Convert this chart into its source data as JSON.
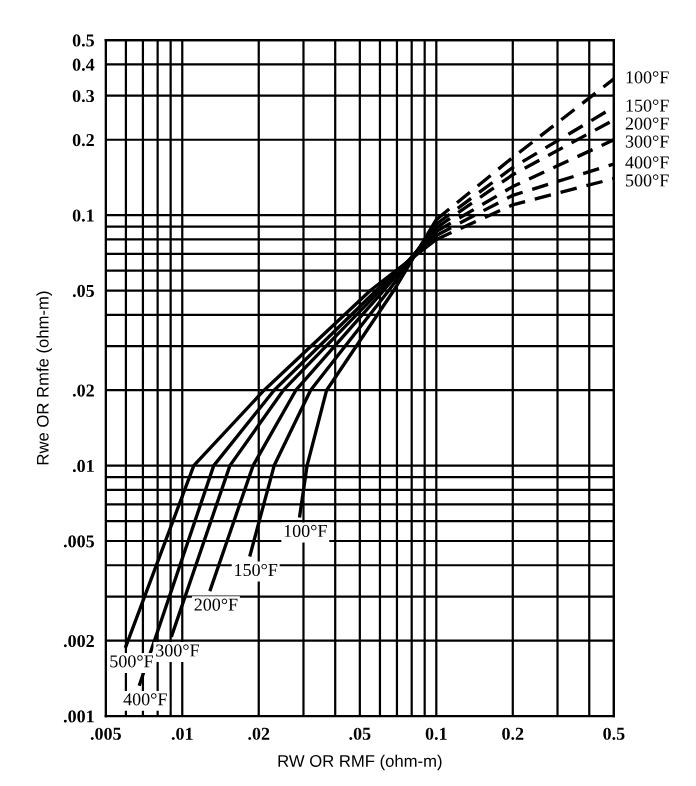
{
  "chart_data": {
    "type": "line",
    "xlabel": "RW OR RMF (ohm-m)",
    "ylabel": "Rwe OR Rmfe (ohm-m)",
    "log": "xy",
    "grid": true,
    "legend": false,
    "marker": "none",
    "xlim": [
      0.005,
      0.5
    ],
    "ylim": [
      0.001,
      0.5
    ],
    "xticks": [
      {
        "value": 0.005,
        "label": ".005"
      },
      {
        "value": 0.006,
        "label": null
      },
      {
        "value": 0.007,
        "label": null
      },
      {
        "value": 0.008,
        "label": null
      },
      {
        "value": 0.009,
        "label": null
      },
      {
        "value": 0.01,
        "label": ".01"
      },
      {
        "value": 0.02,
        "label": ".02"
      },
      {
        "value": 0.03,
        "label": null
      },
      {
        "value": 0.04,
        "label": null
      },
      {
        "value": 0.05,
        "label": ".05"
      },
      {
        "value": 0.06,
        "label": null
      },
      {
        "value": 0.07,
        "label": null
      },
      {
        "value": 0.08,
        "label": null
      },
      {
        "value": 0.09,
        "label": null
      },
      {
        "value": 0.1,
        "label": "0.1"
      },
      {
        "value": 0.2,
        "label": "0.2"
      },
      {
        "value": 0.3,
        "label": null
      },
      {
        "value": 0.4,
        "label": null
      },
      {
        "value": 0.5,
        "label": "0.5"
      }
    ],
    "yticks": [
      {
        "value": 0.001,
        "label": ".001"
      },
      {
        "value": 0.002,
        "label": ".002"
      },
      {
        "value": 0.003,
        "label": null
      },
      {
        "value": 0.004,
        "label": null
      },
      {
        "value": 0.005,
        "label": ".005"
      },
      {
        "value": 0.006,
        "label": null
      },
      {
        "value": 0.007,
        "label": null
      },
      {
        "value": 0.008,
        "label": null
      },
      {
        "value": 0.009,
        "label": null
      },
      {
        "value": 0.01,
        "label": ".01"
      },
      {
        "value": 0.02,
        "label": ".02"
      },
      {
        "value": 0.03,
        "label": null
      },
      {
        "value": 0.04,
        "label": null
      },
      {
        "value": 0.05,
        "label": ".05"
      },
      {
        "value": 0.06,
        "label": null
      },
      {
        "value": 0.07,
        "label": null
      },
      {
        "value": 0.08,
        "label": null
      },
      {
        "value": 0.09,
        "label": null
      },
      {
        "value": 0.1,
        "label": "0.1"
      },
      {
        "value": 0.2,
        "label": "0.2"
      },
      {
        "value": 0.3,
        "label": "0.3"
      },
      {
        "value": 0.4,
        "label": "0.4"
      },
      {
        "value": 0.5,
        "label": "0.5"
      }
    ],
    "series": [
      {
        "name": "100°F",
        "color": "#000000",
        "line_style": "solid",
        "x": [
          0.029,
          0.031,
          0.037,
          0.068,
          0.1
        ],
        "values": [
          0.0063,
          0.01,
          0.02,
          0.05,
          0.096
        ]
      },
      {
        "name": "150°F",
        "color": "#000000",
        "line_style": "solid",
        "x": [
          0.0185,
          0.023,
          0.032,
          0.065,
          0.1
        ],
        "values": [
          0.0044,
          0.01,
          0.02,
          0.05,
          0.092
        ]
      },
      {
        "name": "200°F",
        "color": "#000000",
        "line_style": "solid",
        "x": [
          0.0129,
          0.019,
          0.028,
          0.062,
          0.1
        ],
        "values": [
          0.0032,
          0.01,
          0.02,
          0.05,
          0.089
        ]
      },
      {
        "name": "300°F",
        "color": "#000000",
        "line_style": "solid",
        "x": [
          0.0091,
          0.0154,
          0.025,
          0.06,
          0.1
        ],
        "values": [
          0.0021,
          0.01,
          0.02,
          0.05,
          0.086
        ]
      },
      {
        "name": "400°F",
        "color": "#000000",
        "line_style": "solid",
        "x": [
          0.0068,
          0.0133,
          0.023,
          0.058,
          0.1
        ],
        "values": [
          0.00134,
          0.01,
          0.02,
          0.05,
          0.083
        ]
      },
      {
        "name": "500°F",
        "color": "#000000",
        "line_style": "solid",
        "x": [
          0.006,
          0.0111,
          0.021,
          0.055,
          0.1
        ],
        "values": [
          0.0019,
          0.01,
          0.02,
          0.05,
          0.08
        ]
      },
      {
        "name": "100°F",
        "color": "#000000",
        "line_style": "dashed",
        "x": [
          0.1,
          0.2,
          0.5
        ],
        "values": [
          0.096,
          0.17,
          0.35
        ]
      },
      {
        "name": "150°F",
        "color": "#000000",
        "line_style": "dashed",
        "x": [
          0.1,
          0.2,
          0.5
        ],
        "values": [
          0.092,
          0.155,
          0.27
        ]
      },
      {
        "name": "200°F",
        "color": "#000000",
        "line_style": "dashed",
        "x": [
          0.1,
          0.2,
          0.5
        ],
        "values": [
          0.089,
          0.145,
          0.24
        ]
      },
      {
        "name": "300°F",
        "color": "#000000",
        "line_style": "dashed",
        "x": [
          0.1,
          0.2,
          0.5
        ],
        "values": [
          0.086,
          0.13,
          0.2
        ]
      },
      {
        "name": "400°F",
        "color": "#000000",
        "line_style": "dashed",
        "x": [
          0.1,
          0.2,
          0.5
        ],
        "values": [
          0.083,
          0.12,
          0.16
        ]
      },
      {
        "name": "500°F",
        "color": "#000000",
        "line_style": "dashed",
        "x": [
          0.1,
          0.2,
          0.5
        ],
        "values": [
          0.08,
          0.11,
          0.14
        ]
      }
    ]
  }
}
